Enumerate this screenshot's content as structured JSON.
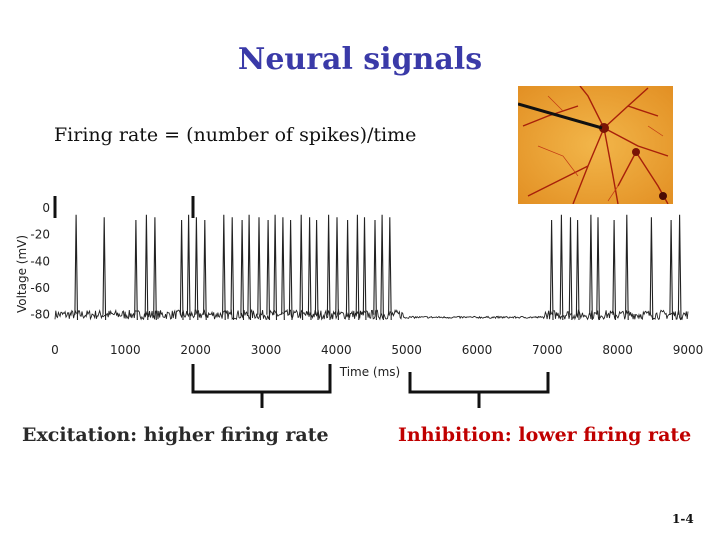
{
  "slide": {
    "title": "Neural signals",
    "formula": "Firing rate = (number of spikes)/time",
    "excitation_caption": "Excitation: higher firing rate",
    "inhibition_caption": "Inhibition: lower firing rate",
    "slide_number": "1-4",
    "photo_icon": "neuron-micrograph-icon"
  },
  "chart_data": {
    "type": "line",
    "xlabel": "Time (ms)",
    "ylabel": "Voltage (mV)",
    "xlim": [
      0,
      9000
    ],
    "ylim": [
      -90,
      0
    ],
    "x_ticks": [
      "0",
      "1000",
      "2000",
      "3000",
      "4000",
      "5000",
      "6000",
      "7000",
      "8000",
      "9000"
    ],
    "y_ticks": [
      "0",
      "-20",
      "-40",
      "-60",
      "-80"
    ],
    "resting_potential": -80,
    "spike_peak": -5,
    "spike_times_ms": [
      300,
      700,
      1150,
      1300,
      1420,
      1800,
      1900,
      2010,
      2130,
      2400,
      2520,
      2660,
      2760,
      2900,
      3030,
      3130,
      3240,
      3350,
      3500,
      3620,
      3720,
      3890,
      4010,
      4160,
      4300,
      4400,
      4550,
      4650,
      4760,
      7060,
      7200,
      7330,
      7430,
      7620,
      7720,
      7950,
      8130,
      8480,
      8760,
      8880
    ],
    "inhibition_window_ms": [
      4850,
      7000
    ],
    "excitation_window_ms": [
      1900,
      3900
    ],
    "color": "#222222"
  }
}
